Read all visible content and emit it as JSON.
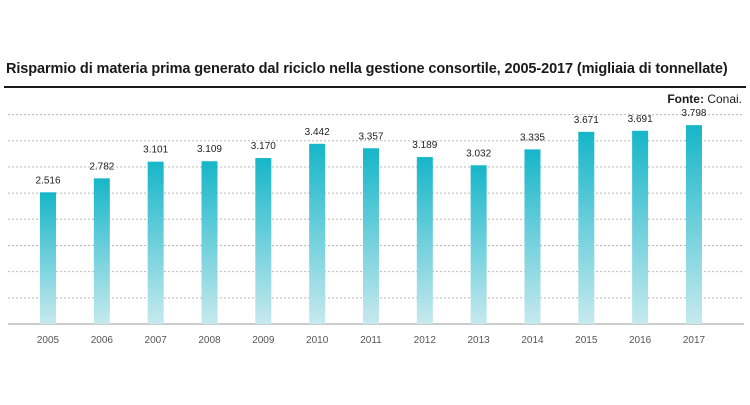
{
  "title": "Risparmio di materia prima generato dal riciclo nella gestione consortile, 2005-2017 (migliaia di tonnellate)",
  "source": {
    "label": "Fonte:",
    "value": "Conai."
  },
  "colors": {
    "bar_top": "#16b6c9",
    "bar_bottom": "#c6e9ee",
    "grid": "#b8b8b8",
    "text": "#222222",
    "axis_text": "#555555"
  },
  "chart_data": {
    "type": "bar",
    "title": "Risparmio di materia prima generato dal riciclo nella gestione consortile, 2005-2017 (migliaia di tonnellate)",
    "xlabel": "",
    "ylabel": "",
    "categories": [
      "2005",
      "2006",
      "2007",
      "2008",
      "2009",
      "2010",
      "2011",
      "2012",
      "2013",
      "2014",
      "2015",
      "2016",
      "2017"
    ],
    "values": [
      2516,
      2782,
      3101,
      3109,
      3170,
      3442,
      3357,
      3189,
      3032,
      3335,
      3671,
      3691,
      3798
    ],
    "value_labels": [
      "2.516",
      "2.782",
      "3.101",
      "3.109",
      "3.170",
      "3.442",
      "3.357",
      "3.189",
      "3.032",
      "3.335",
      "3.671",
      "3.691",
      "3.798"
    ],
    "ylim": [
      0,
      4000
    ],
    "grid": true,
    "legend": "none"
  }
}
